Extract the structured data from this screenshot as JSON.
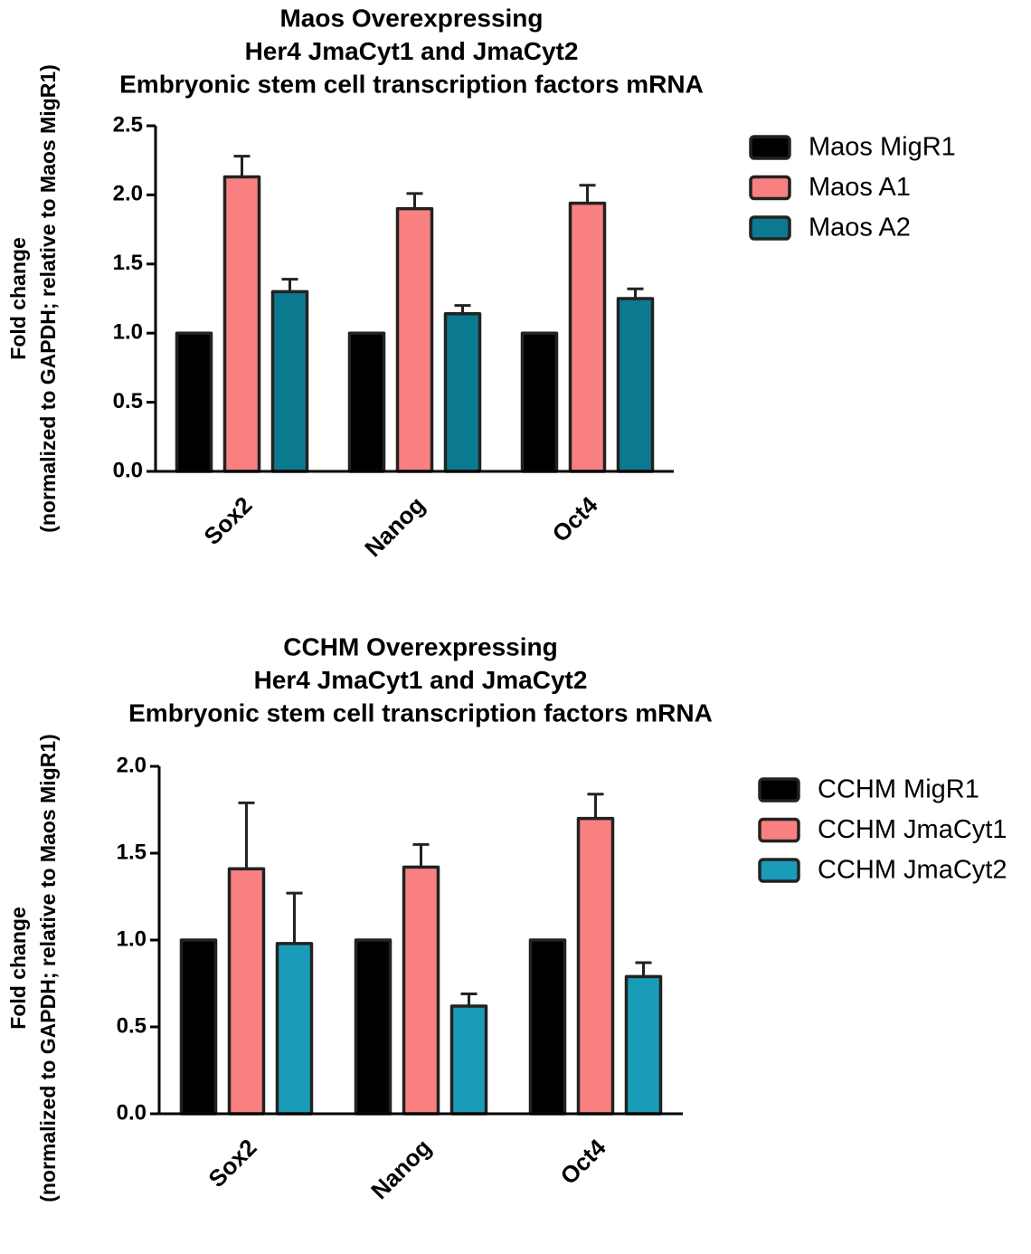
{
  "chart_data": [
    {
      "type": "bar",
      "title": [
        "Maos Overexpressing",
        "Her4 JmaCyt1 and JmaCyt2",
        "Embryonic stem cell transcription factors mRNA"
      ],
      "ylabel": [
        "Fold change",
        "(normalized to GAPDH; relative to Maos MigR1)"
      ],
      "categories": [
        "Sox2",
        "Nanog",
        "Oct4"
      ],
      "series": [
        {
          "name": "Maos MigR1",
          "color": "#000000",
          "values": [
            1,
            1,
            1
          ]
        },
        {
          "name": "Maos A1",
          "color": "#f88080",
          "values": [
            2.13,
            1.9,
            1.94
          ],
          "errors": [
            0.15,
            0.11,
            0.13
          ]
        },
        {
          "name": "Maos A2",
          "color": "#0b7a91",
          "values": [
            1.3,
            1.14,
            1.25
          ],
          "errors": [
            0.09,
            0.06,
            0.07
          ]
        }
      ],
      "ylim": [
        0,
        2.5
      ],
      "yticks": [
        {
          "value": 0,
          "label": "0.0"
        },
        0.5,
        {
          "value": 1,
          "label": "1.0"
        },
        1.5,
        {
          "value": 2,
          "label": "2.0"
        },
        2.5
      ],
      "legend": "right"
    },
    {
      "type": "bar",
      "title": [
        "CCHM Overexpressing",
        "Her4 JmaCyt1 and JmaCyt2",
        "Embryonic stem cell transcription factors mRNA"
      ],
      "ylabel": [
        "Fold change",
        "(normalized to GAPDH; relative to Maos MigR1)"
      ],
      "categories": [
        "Sox2",
        "Nanog",
        "Oct4"
      ],
      "series": [
        {
          "name": "CCHM MigR1",
          "color": "#000000",
          "values": [
            1,
            1,
            1
          ]
        },
        {
          "name": "CCHM JmaCyt1",
          "color": "#f88080",
          "values": [
            1.41,
            1.42,
            1.7
          ],
          "errors": [
            0.38,
            0.13,
            0.14
          ]
        },
        {
          "name": "CCHM JmaCyt2",
          "color": "#1a9cb8",
          "values": [
            0.98,
            0.62,
            0.79
          ],
          "errors": [
            0.29,
            0.07,
            0.08
          ]
        }
      ],
      "ylim": [
        0,
        2.0
      ],
      "yticks": [
        {
          "value": 0,
          "label": "0.0"
        },
        0.5,
        {
          "value": 1,
          "label": "1.0"
        },
        1.5,
        {
          "value": 2,
          "label": "2.0"
        }
      ],
      "legend": "right"
    }
  ]
}
